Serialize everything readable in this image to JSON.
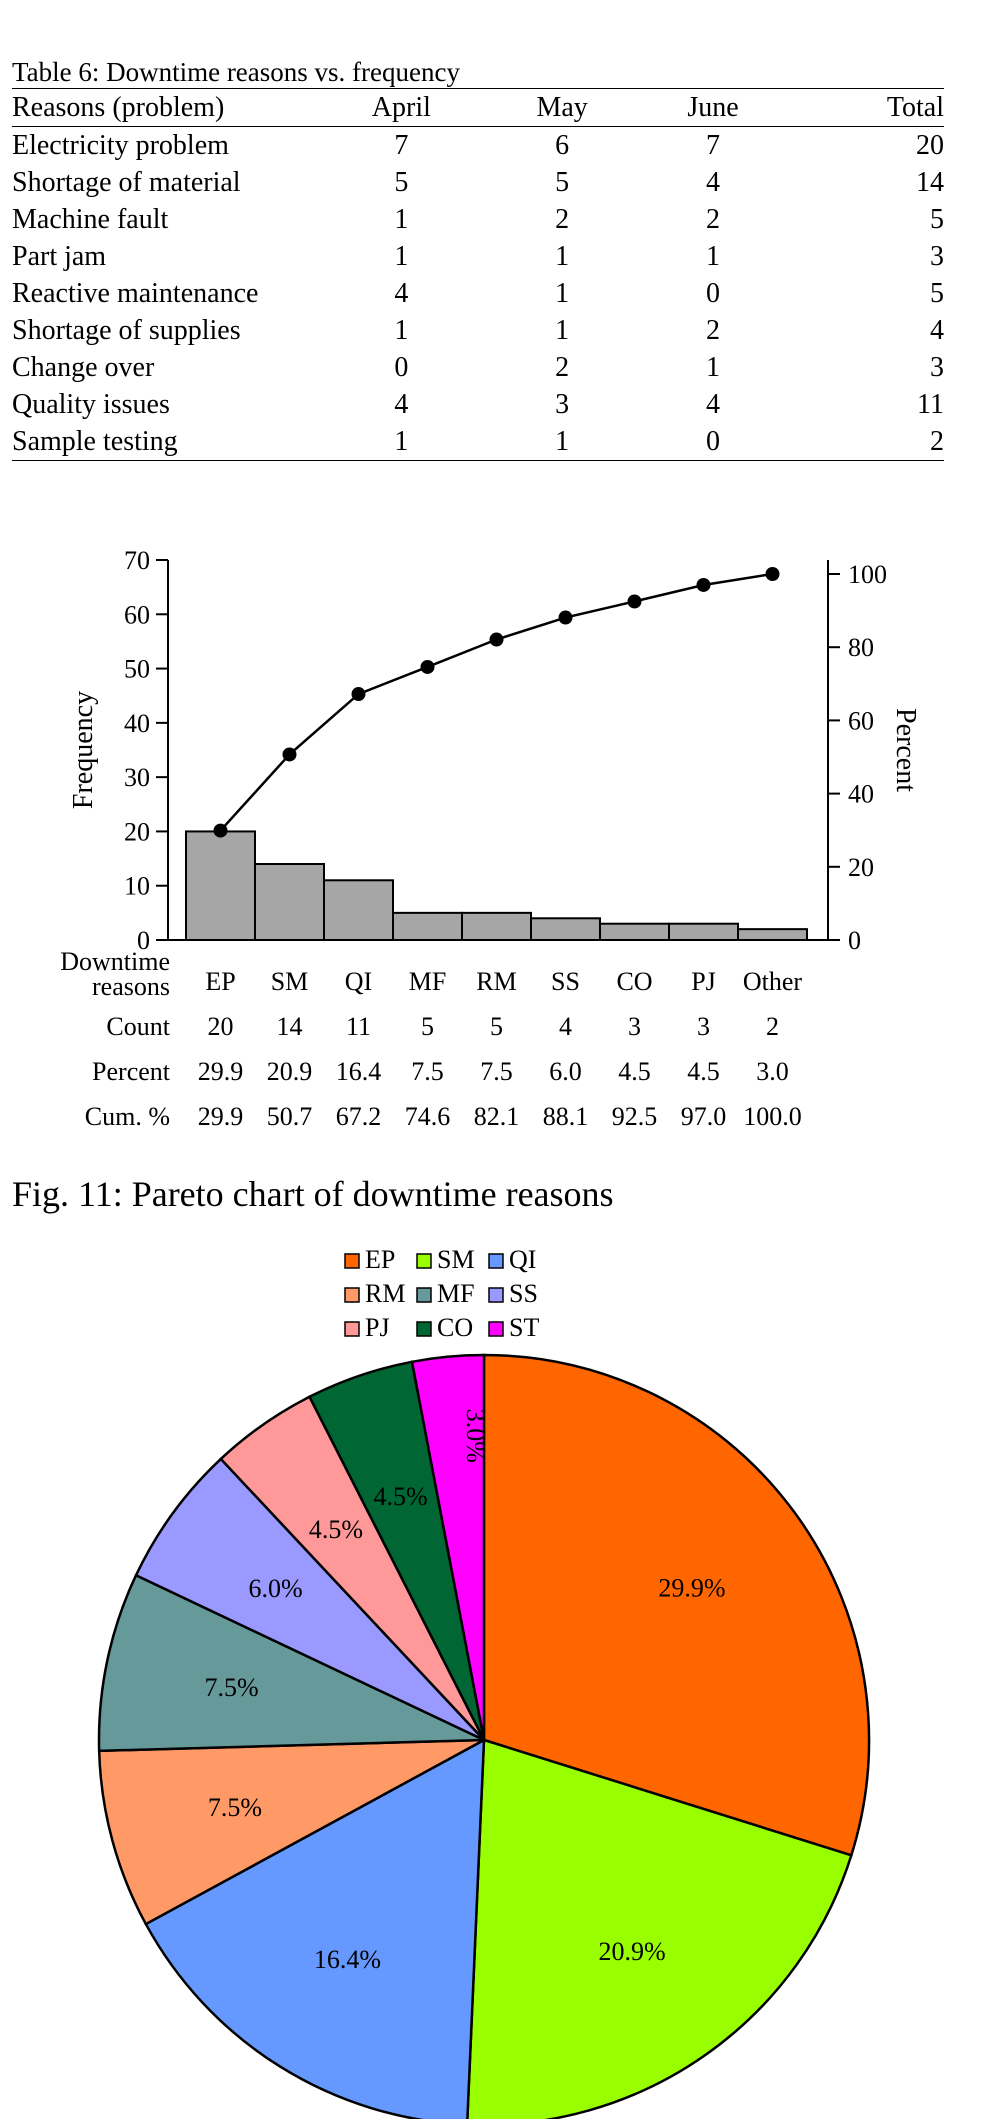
{
  "table": {
    "caption": "Table 6: Downtime reasons vs. frequency",
    "headers": [
      "Reasons (problem)",
      "April",
      "May",
      "June",
      "Total"
    ],
    "rows": [
      {
        "reason": "Electricity problem",
        "april": "7",
        "may": "6",
        "june": "7",
        "total": "20"
      },
      {
        "reason": "Shortage of material",
        "april": "5",
        "may": "5",
        "june": "4",
        "total": "14"
      },
      {
        "reason": "Machine fault",
        "april": "1",
        "may": "2",
        "june": "2",
        "total": "5"
      },
      {
        "reason": "Part jam",
        "april": "1",
        "may": "1",
        "june": "1",
        "total": "3"
      },
      {
        "reason": "Reactive maintenance",
        "april": "4",
        "may": "1",
        "june": "0",
        "total": "5"
      },
      {
        "reason": "Shortage of supplies",
        "april": "1",
        "may": "1",
        "june": "2",
        "total": "4"
      },
      {
        "reason": "Change over",
        "april": "0",
        "may": "2",
        "june": "1",
        "total": "3"
      },
      {
        "reason": "Quality issues",
        "april": "4",
        "may": "3",
        "june": "4",
        "total": "11"
      },
      {
        "reason": "Sample testing",
        "april": "1",
        "may": "1",
        "june": "0",
        "total": "2"
      }
    ]
  },
  "figure_caption": "Fig. 11: Pareto chart of downtime reasons",
  "chart_data": [
    {
      "type": "bar",
      "subtype": "pareto",
      "categories": [
        "EP",
        "SM",
        "QI",
        "MF",
        "RM",
        "SS",
        "CO",
        "PJ",
        "Other"
      ],
      "values": [
        20,
        14,
        11,
        5,
        5,
        4,
        3,
        3,
        2
      ],
      "cumulative_percent": [
        29.9,
        50.7,
        67.2,
        74.6,
        82.1,
        88.1,
        92.5,
        97.0,
        100.0
      ],
      "percent": [
        29.9,
        20.9,
        16.4,
        7.5,
        7.5,
        6.0,
        4.5,
        4.5,
        3.0
      ],
      "ylabel": "Frequency",
      "y2label": "Percent",
      "ylim": [
        0,
        70
      ],
      "y2lim": [
        0,
        100
      ],
      "yticks": [
        0,
        10,
        20,
        30,
        40,
        50,
        60,
        70
      ],
      "y2ticks": [
        0,
        20,
        40,
        60,
        80,
        100
      ],
      "row_labels": {
        "reasons": "Downtime reasons",
        "count": "Count",
        "percent": "Percent",
        "cum": "Cum. %"
      },
      "count_labels": [
        "20",
        "14",
        "11",
        "5",
        "5",
        "4",
        "3",
        "3",
        "2"
      ],
      "percent_labels": [
        "29.9",
        "20.9",
        "16.4",
        "7.5",
        "7.5",
        "6.0",
        "4.5",
        "4.5",
        "3.0"
      ],
      "cum_labels": [
        "29.9",
        "50.7",
        "67.2",
        "74.6",
        "82.1",
        "88.1",
        "92.5",
        "97.0",
        "100.0"
      ],
      "bar_color": "#a6a6a6",
      "line_color": "#000000"
    },
    {
      "type": "pie",
      "labels": [
        "EP",
        "SM",
        "QI",
        "RM",
        "MF",
        "SS",
        "PJ",
        "CO",
        "ST"
      ],
      "values": [
        29.9,
        20.9,
        16.4,
        7.5,
        7.5,
        6.0,
        4.5,
        4.5,
        3.0
      ],
      "value_labels": [
        "29.9%",
        "20.9%",
        "16.4%",
        "7.5%",
        "7.5%",
        "6.0%",
        "4.5%",
        "4.5%",
        "3.0%"
      ],
      "colors": [
        "#ff6600",
        "#99ff00",
        "#6699ff",
        "#ff9966",
        "#669999",
        "#9999ff",
        "#ff9999",
        "#006633",
        "#ff00ff"
      ],
      "legend_position": "top"
    }
  ]
}
